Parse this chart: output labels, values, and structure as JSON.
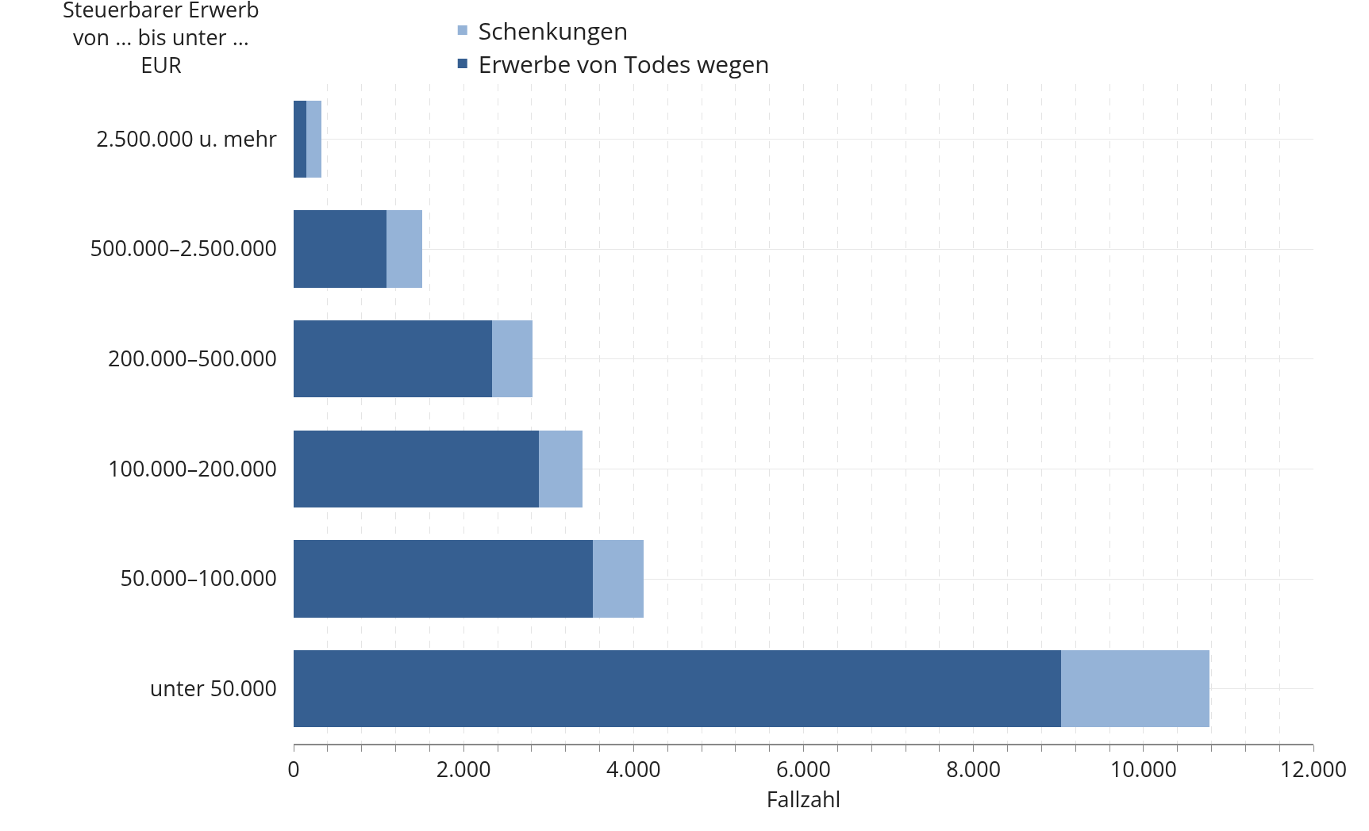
{
  "chart_data": {
    "type": "bar",
    "orientation": "horizontal",
    "stacked": true,
    "ylabel": "Steuerbarer Erwerb\nvon ... bis unter ...\nEUR",
    "xlabel": "Fallzahl",
    "categories": [
      "2.500.000 u. mehr",
      "500.000–2.500.000",
      "200.000–500.000",
      "100.000–200.000",
      "50.000–100.000",
      "unter 50.000"
    ],
    "series": [
      {
        "name": "Erwerbe von Todes wegen",
        "color": "#365f91",
        "values": [
          150,
          1090,
          2330,
          2890,
          3520,
          9030
        ]
      },
      {
        "name": "Schenkungen",
        "color": "#95b3d7",
        "values": [
          180,
          420,
          480,
          510,
          600,
          1750
        ]
      }
    ],
    "xlim": [
      0,
      12000
    ],
    "xticks": [
      0,
      {
        "value": 400,
        "label": null
      },
      {
        "value": 800,
        "label": null
      },
      {
        "value": 1200,
        "label": null
      },
      {
        "value": 1600,
        "label": null
      },
      {
        "value": 2000,
        "label": "2.000"
      },
      {
        "value": 2400,
        "label": null
      },
      {
        "value": 2800,
        "label": null
      },
      {
        "value": 3200,
        "label": null
      },
      {
        "value": 3600,
        "label": null
      },
      {
        "value": 4000,
        "label": "4.000"
      },
      {
        "value": 4400,
        "label": null
      },
      {
        "value": 4800,
        "label": null
      },
      {
        "value": 5200,
        "label": null
      },
      {
        "value": 5600,
        "label": null
      },
      {
        "value": 6000,
        "label": "6.000"
      },
      {
        "value": 6400,
        "label": null
      },
      {
        "value": 6800,
        "label": null
      },
      {
        "value": 7200,
        "label": null
      },
      {
        "value": 7600,
        "label": null
      },
      {
        "value": 8000,
        "label": "8.000"
      },
      {
        "value": 8400,
        "label": null
      },
      {
        "value": 8800,
        "label": null
      },
      {
        "value": 9200,
        "label": null
      },
      {
        "value": 9600,
        "label": null
      },
      {
        "value": 10000,
        "label": "10.000"
      },
      {
        "value": 10400,
        "label": null
      },
      {
        "value": 10800,
        "label": null
      },
      {
        "value": 11200,
        "label": null
      },
      {
        "value": 11600,
        "label": null
      },
      {
        "value": 12000,
        "label": "12.000"
      }
    ],
    "grid": true,
    "legend": "top"
  }
}
